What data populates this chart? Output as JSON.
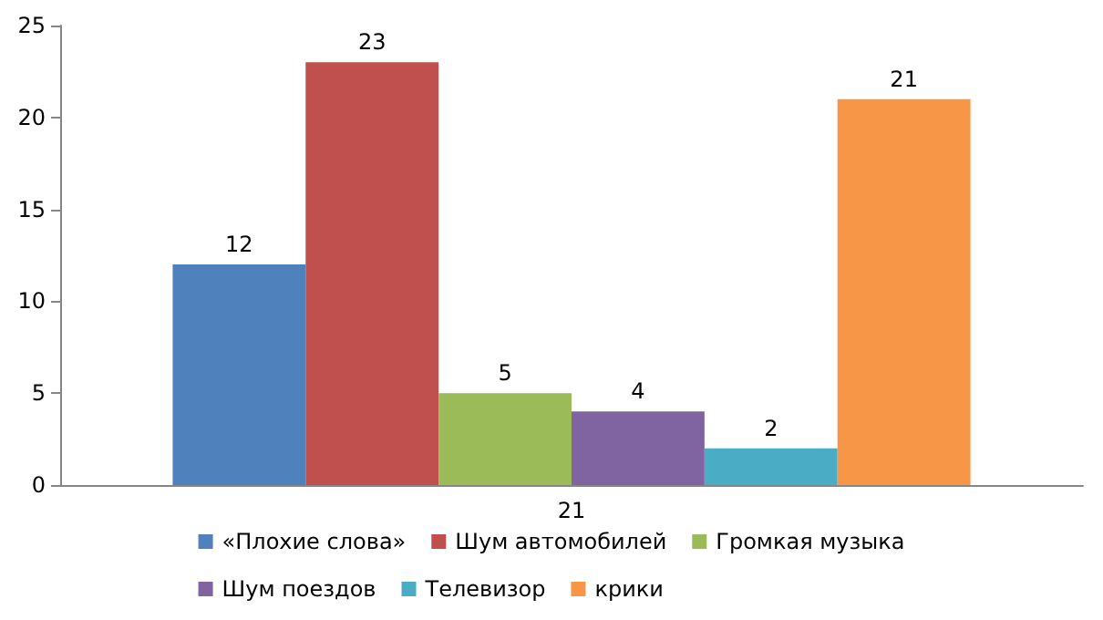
{
  "chart_data": {
    "type": "bar",
    "categories": [
      "21"
    ],
    "series": [
      {
        "name": "«Плохие слова»",
        "color": "#4f81bd",
        "values": [
          12
        ]
      },
      {
        "name": "Шум автомобилей",
        "color": "#c0504d",
        "values": [
          23
        ]
      },
      {
        "name": "Громкая музыка",
        "color": "#9bbb59",
        "values": [
          5
        ]
      },
      {
        "name": "Шум поездов",
        "color": "#8064a2",
        "values": [
          4
        ]
      },
      {
        "name": "Телевизор",
        "color": "#4bacc6",
        "values": [
          2
        ]
      },
      {
        "name": "крики",
        "color": "#f79646",
        "values": [
          21
        ]
      }
    ],
    "ylim": [
      0,
      25
    ],
    "yticks": [
      0,
      5,
      10,
      15,
      20,
      25
    ],
    "data_labels": true,
    "legend": "bottom",
    "grid": false
  }
}
